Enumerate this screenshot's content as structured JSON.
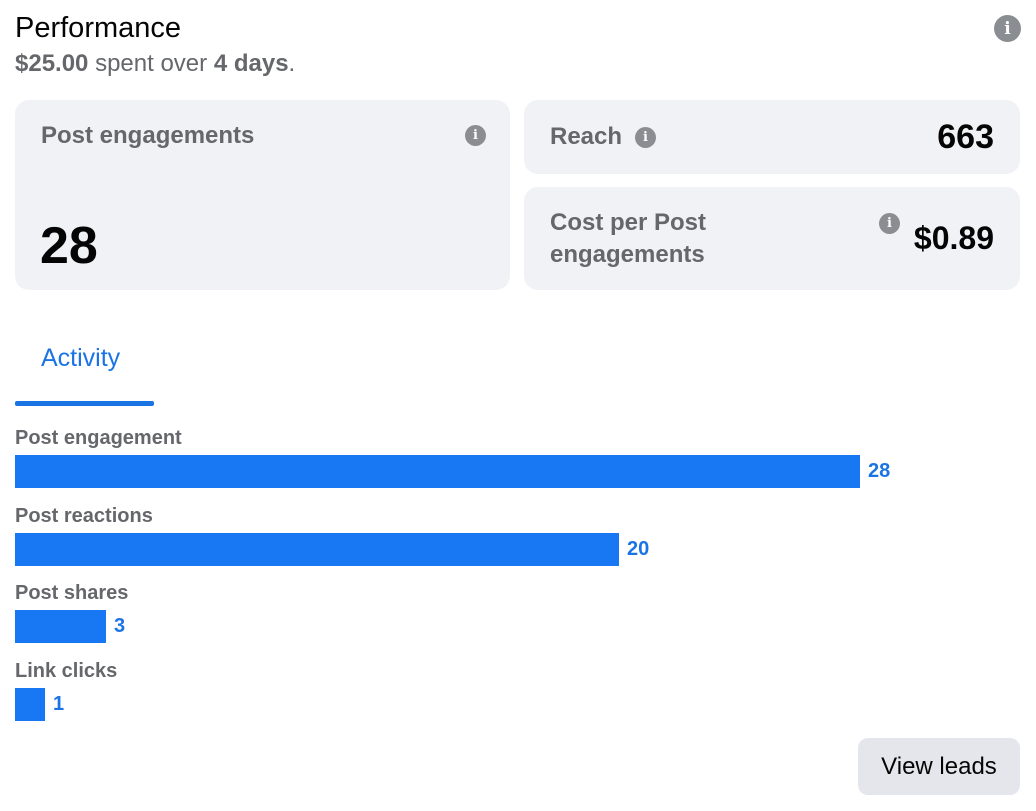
{
  "header": {
    "title": "Performance",
    "spent_amount": "$25.00",
    "spent_text": "spent over",
    "duration": "4 days",
    "duration_suffix": "."
  },
  "icons": {
    "info": "info-icon",
    "info_glyph": "i"
  },
  "cards": {
    "post_engagements": {
      "label": "Post engagements",
      "value": "28"
    },
    "reach": {
      "label": "Reach",
      "value": "663"
    },
    "cost_per": {
      "label_line1": "Cost per Post",
      "label_line2": "engagements",
      "value": "$0.89"
    }
  },
  "tabs": [
    {
      "label": "Activity",
      "active": true
    }
  ],
  "chart_data": {
    "type": "bar",
    "orientation": "horizontal",
    "categories": [
      "Post engagement",
      "Post reactions",
      "Post shares",
      "Link clicks"
    ],
    "values": [
      28,
      20,
      3,
      1
    ],
    "title": "",
    "xlabel": "",
    "ylabel": "",
    "xlim": [
      0,
      28
    ],
    "grid": false,
    "color": "#1877f2"
  },
  "actions": {
    "view_leads": "View leads"
  }
}
